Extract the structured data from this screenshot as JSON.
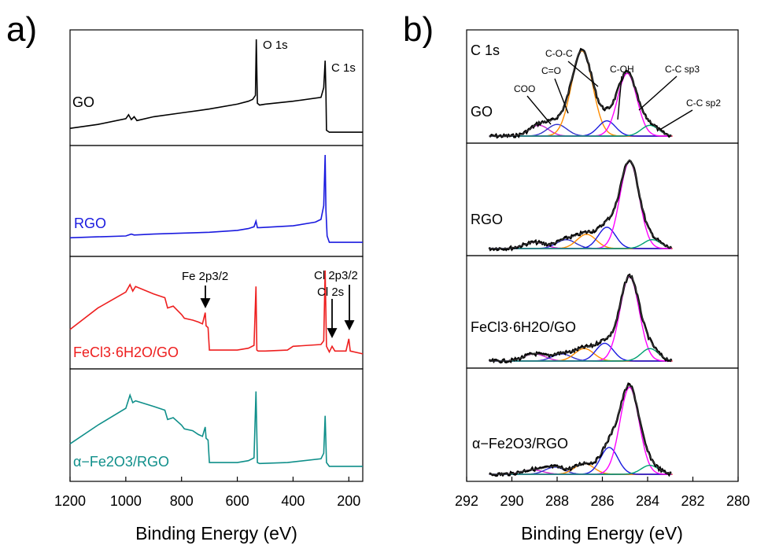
{
  "panel_a": {
    "label": "a)",
    "xlabel": "Binding Energy (eV)",
    "xticks": [
      "1200",
      "1000",
      "800",
      "600",
      "400",
      "200"
    ],
    "peaks": [
      {
        "text": "O 1s"
      },
      {
        "text": "C 1s"
      },
      {
        "text": "Fe 2p3/2"
      },
      {
        "text": "Cl 2p3/2"
      },
      {
        "text": "Cl 2s"
      }
    ]
  },
  "panel_b": {
    "label": "b)",
    "xlabel": "Binding Energy (eV)",
    "xticks": [
      "292",
      "290",
      "288",
      "286",
      "284",
      "282",
      "280"
    ],
    "title": "C 1s",
    "components": [
      {
        "text": "COO"
      },
      {
        "text": "C=O"
      },
      {
        "text": "C-O-C"
      },
      {
        "text": "C-OH"
      },
      {
        "text": "C-C sp3"
      },
      {
        "text": "C-C sp2"
      }
    ]
  },
  "samples": [
    {
      "name": "GO",
      "color": "#000000"
    },
    {
      "name": "RGO",
      "color": "#1a1adf"
    },
    {
      "name": "FeCl3·6H2O/GO",
      "color": "#ee1f1f"
    },
    {
      "name": "α−Fe2O3/RGO",
      "color": "#0f8f8a"
    }
  ],
  "component_colors": {
    "envelope": "#000000",
    "baseline": "#ee1f1f",
    "COO": "#cc22cc",
    "C=O": "#3333cc",
    "C-O-C": "#ff8c00",
    "C-OH": "#1a1adf",
    "C-C sp3": "#ff00ff",
    "C-C sp2": "#00a070"
  },
  "chart_data": [
    {
      "type": "line",
      "title": "",
      "xlabel": "Binding Energy (eV)",
      "ylabel": "",
      "xlim": [
        1200,
        150
      ],
      "x_reversed": true,
      "series": [
        {
          "name": "GO",
          "x": [
            1200,
            1100,
            1000,
            990,
            980,
            970,
            960,
            900,
            800,
            700,
            600,
            560,
            545,
            535,
            532,
            528,
            520,
            500,
            400,
            300,
            290,
            285,
            282,
            280,
            270,
            200,
            150
          ],
          "y": [
            0.08,
            0.12,
            0.18,
            0.22,
            0.17,
            0.2,
            0.16,
            0.2,
            0.24,
            0.28,
            0.33,
            0.36,
            0.38,
            0.42,
            1.0,
            0.34,
            0.32,
            0.33,
            0.36,
            0.4,
            0.5,
            0.78,
            0.45,
            0.06,
            0.04,
            0.04,
            0.04
          ]
        },
        {
          "name": "RGO",
          "x": [
            1200,
            1100,
            1000,
            980,
            970,
            900,
            800,
            700,
            600,
            560,
            540,
            533,
            528,
            520,
            400,
            320,
            300,
            290,
            285,
            282,
            278,
            270,
            200,
            150
          ],
          "y": [
            0.1,
            0.11,
            0.12,
            0.14,
            0.13,
            0.14,
            0.15,
            0.16,
            0.18,
            0.2,
            0.22,
            0.28,
            0.21,
            0.21,
            0.23,
            0.27,
            0.3,
            0.45,
            1.0,
            0.4,
            0.12,
            0.05,
            0.05,
            0.05
          ]
        },
        {
          "name": "FeCl3·6H2O/GO",
          "x": [
            1200,
            1100,
            1000,
            985,
            975,
            965,
            900,
            860,
            850,
            830,
            800,
            790,
            760,
            740,
            725,
            715,
            712,
            705,
            700,
            600,
            560,
            540,
            533,
            530,
            525,
            500,
            420,
            400,
            300,
            290,
            285,
            280,
            270,
            260,
            250,
            210,
            200,
            195,
            150
          ],
          "y": [
            0.32,
            0.55,
            0.72,
            0.8,
            0.73,
            0.78,
            0.7,
            0.66,
            0.55,
            0.57,
            0.48,
            0.44,
            0.42,
            0.4,
            0.38,
            0.5,
            0.36,
            0.34,
            0.1,
            0.1,
            0.12,
            0.15,
            0.78,
            0.1,
            0.09,
            0.09,
            0.1,
            0.14,
            0.16,
            0.2,
            0.95,
            0.14,
            0.08,
            0.14,
            0.09,
            0.09,
            0.22,
            0.09,
            0.06
          ]
        },
        {
          "name": "α−Fe2O3/RGO",
          "x": [
            1200,
            1100,
            1000,
            985,
            975,
            965,
            900,
            860,
            850,
            830,
            800,
            790,
            760,
            740,
            725,
            715,
            712,
            705,
            700,
            600,
            560,
            540,
            533,
            528,
            520,
            420,
            300,
            290,
            285,
            280,
            270,
            200,
            150
          ],
          "y": [
            0.3,
            0.5,
            0.68,
            0.82,
            0.74,
            0.76,
            0.7,
            0.66,
            0.56,
            0.58,
            0.5,
            0.46,
            0.44,
            0.4,
            0.38,
            0.48,
            0.36,
            0.34,
            0.1,
            0.1,
            0.12,
            0.15,
            0.86,
            0.1,
            0.09,
            0.1,
            0.14,
            0.2,
            0.6,
            0.1,
            0.06,
            0.06,
            0.06
          ]
        }
      ]
    },
    {
      "type": "line",
      "title": "C 1s",
      "xlabel": "Binding Energy (eV)",
      "ylabel": "",
      "xlim": [
        292,
        280
      ],
      "x_reversed": true,
      "panels": [
        {
          "sample": "GO",
          "components": [
            {
              "name": "COO",
              "center": 288.8,
              "height": 0.12,
              "fwhm": 1.0
            },
            {
              "name": "C=O",
              "center": 288.0,
              "height": 0.13,
              "fwhm": 1.0
            },
            {
              "name": "C-O-C",
              "center": 286.9,
              "height": 0.95,
              "fwhm": 1.1
            },
            {
              "name": "C-OH",
              "center": 285.8,
              "height": 0.17,
              "fwhm": 0.9
            },
            {
              "name": "C-C sp3",
              "center": 284.9,
              "height": 0.7,
              "fwhm": 1.0
            },
            {
              "name": "C-C sp2",
              "center": 283.9,
              "height": 0.12,
              "fwhm": 0.9
            }
          ]
        },
        {
          "sample": "RGO",
          "components": [
            {
              "name": "COO",
              "center": 289.0,
              "height": 0.07,
              "fwhm": 1.1
            },
            {
              "name": "C=O",
              "center": 287.6,
              "height": 0.1,
              "fwhm": 1.0
            },
            {
              "name": "C-O-C",
              "center": 286.7,
              "height": 0.16,
              "fwhm": 1.0
            },
            {
              "name": "C-OH",
              "center": 285.8,
              "height": 0.24,
              "fwhm": 0.9
            },
            {
              "name": "C-C sp3",
              "center": 284.8,
              "height": 0.98,
              "fwhm": 1.0
            },
            {
              "name": "C-C sp2",
              "center": 283.8,
              "height": 0.1,
              "fwhm": 0.9
            }
          ]
        },
        {
          "sample": "FeCl3·6H2O/GO",
          "components": [
            {
              "name": "COO",
              "center": 289.0,
              "height": 0.08,
              "fwhm": 1.1
            },
            {
              "name": "C=O",
              "center": 287.8,
              "height": 0.08,
              "fwhm": 1.0
            },
            {
              "name": "C-O-C",
              "center": 286.8,
              "height": 0.14,
              "fwhm": 1.0
            },
            {
              "name": "C-OH",
              "center": 285.9,
              "height": 0.2,
              "fwhm": 0.9
            },
            {
              "name": "C-C sp3",
              "center": 284.8,
              "height": 0.95,
              "fwhm": 1.0
            },
            {
              "name": "C-C sp2",
              "center": 283.9,
              "height": 0.14,
              "fwhm": 0.9
            }
          ]
        },
        {
          "sample": "α−Fe2O3/RGO",
          "components": [
            {
              "name": "COO",
              "center": 289.1,
              "height": 0.05,
              "fwhm": 1.1
            },
            {
              "name": "C=O",
              "center": 288.1,
              "height": 0.08,
              "fwhm": 1.0
            },
            {
              "name": "C-O-C",
              "center": 286.8,
              "height": 0.12,
              "fwhm": 1.0
            },
            {
              "name": "C-OH",
              "center": 285.7,
              "height": 0.3,
              "fwhm": 0.9
            },
            {
              "name": "C-C sp3",
              "center": 284.8,
              "height": 0.97,
              "fwhm": 1.0
            },
            {
              "name": "C-C sp2",
              "center": 283.9,
              "height": 0.1,
              "fwhm": 0.9
            }
          ]
        }
      ]
    }
  ]
}
